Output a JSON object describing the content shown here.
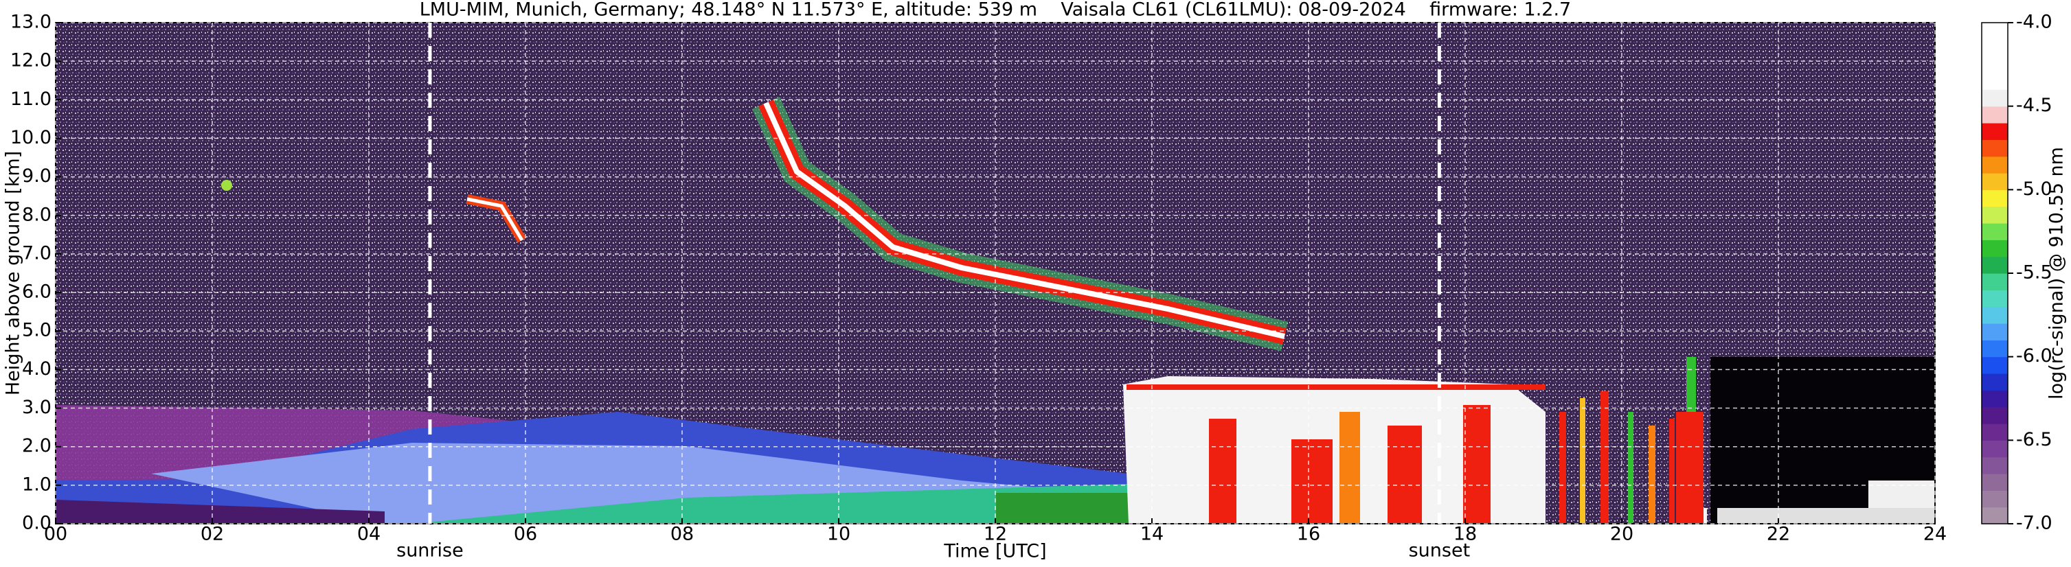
{
  "chart_data": {
    "type": "heatmap",
    "title": "LMU-MIM, Munich, Germany; 48.148° N 11.573° E, altitude: 539 m    Vaisala CL61 (CL61LMU): 08-09-2024    firmware: 1.2.7",
    "xlabel": "Time [UTC]",
    "ylabel": "Height above ground [km]",
    "xlim": [
      0,
      24
    ],
    "xticks": [
      {
        "value": 0,
        "label": "00"
      },
      {
        "value": 2,
        "label": "02"
      },
      {
        "value": 4,
        "label": "04"
      },
      {
        "value": 6,
        "label": "06"
      },
      {
        "value": 8,
        "label": "08"
      },
      10,
      12,
      14,
      16,
      18,
      20,
      22,
      24
    ],
    "ylim": [
      0,
      13
    ],
    "yticks": [
      {
        "value": 0,
        "label": "0.0"
      },
      {
        "value": 1,
        "label": "1.0"
      },
      {
        "value": 2,
        "label": "2.0"
      },
      {
        "value": 3,
        "label": "3.0"
      },
      {
        "value": 4,
        "label": "4.0"
      },
      {
        "value": 5,
        "label": "5.0"
      },
      {
        "value": 6,
        "label": "6.0"
      },
      {
        "value": 7,
        "label": "7.0"
      },
      {
        "value": 8,
        "label": "8.0"
      },
      {
        "value": 9,
        "label": "9.0"
      },
      {
        "value": 10,
        "label": "10.0"
      },
      {
        "value": 11,
        "label": "11.0"
      },
      {
        "value": 12,
        "label": "12.0"
      },
      {
        "value": 13,
        "label": "13.0"
      }
    ],
    "grid": true,
    "annotations": [
      {
        "text": "sunrise",
        "x": 4.78
      },
      {
        "text": "sunset",
        "x": 17.67
      }
    ],
    "colorbar": {
      "label": "log(rc-signal) @ 910.55 nm",
      "lim": [
        -7,
        -4
      ],
      "ticks": [
        {
          "value": -7,
          "label": "-7.0"
        },
        {
          "value": -6.5,
          "label": "-6.5"
        },
        {
          "value": -6,
          "label": "-6.0"
        },
        {
          "value": -5.5,
          "label": "-5.5"
        },
        {
          "value": -5,
          "label": "-5.0"
        },
        {
          "value": -4.5,
          "label": "-4.5"
        },
        {
          "value": -4,
          "label": "-4.0"
        }
      ],
      "colors": [
        "#a892a8",
        "#9c7fa0",
        "#906a98",
        "#85559a",
        "#7a3f98",
        "#6a2a90",
        "#541a8a",
        "#3a1aa0",
        "#2030c8",
        "#1a50f0",
        "#2a78f8",
        "#50a0f8",
        "#58c8e8",
        "#50d8c0",
        "#40d090",
        "#20b050",
        "#30c030",
        "#70e050",
        "#c8f050",
        "#f8f030",
        "#f8c020",
        "#f89010",
        "#f85010",
        "#f01010",
        "#f8c8c8",
        "#f0f0f0",
        "#ffffff",
        "#ffffff",
        "#ffffff",
        "#ffffff"
      ]
    }
  }
}
